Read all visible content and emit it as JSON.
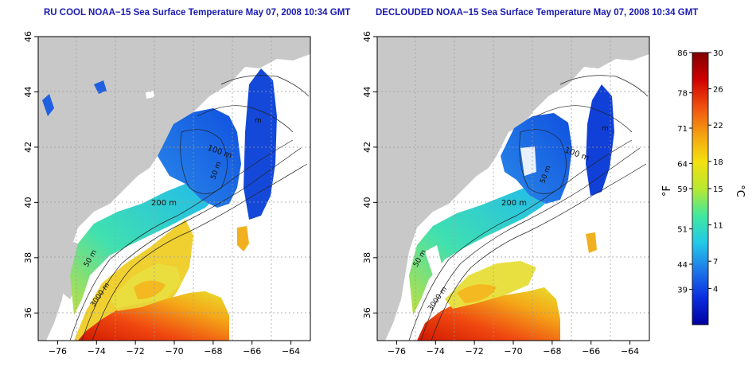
{
  "panels": [
    {
      "title": "RU COOL NOAA−15 Sea Surface Temperature May 07, 2008 10:34 GMT"
    },
    {
      "title": "DECLOUDED NOAA−15 Sea Surface Temperature May 07, 2008 10:34 GMT"
    }
  ],
  "map_axes": {
    "lon_ticks": [
      "−76",
      "−74",
      "−72",
      "−70",
      "−68",
      "−66",
      "−64"
    ],
    "lon_values": [
      -76,
      -74,
      -72,
      -70,
      -68,
      -66,
      -64
    ],
    "lat_ticks": [
      "36",
      "38",
      "40",
      "42",
      "44",
      "46"
    ],
    "lat_values": [
      36,
      38,
      40,
      42,
      44,
      46
    ],
    "lon_range": [
      -77,
      -63
    ],
    "lat_range": [
      35,
      46
    ]
  },
  "contour_labels": [
    "200 m",
    "100 m",
    "50 m",
    "50 m",
    "3000 m",
    "m"
  ],
  "colorbar": {
    "f_label": "°F",
    "c_label": "°C",
    "f_ticks": [
      "86",
      "78",
      "71",
      "64",
      "59",
      "51",
      "44",
      "39"
    ],
    "f_values": [
      86,
      78,
      71,
      64,
      59,
      51,
      44,
      39
    ],
    "c_ticks": [
      "30",
      "26",
      "22",
      "18",
      "15",
      "11",
      "7",
      "4"
    ],
    "c_values": [
      30,
      26,
      22,
      18,
      15,
      11,
      7,
      4
    ],
    "c_range": [
      0,
      30
    ],
    "colors": [
      "#0000a0",
      "#0a2ee0",
      "#1e78e8",
      "#22c8e8",
      "#40e8a0",
      "#b8e830",
      "#f4e010",
      "#f4a010",
      "#f05010",
      "#d00000",
      "#800000"
    ]
  },
  "colors": {
    "land": "#c8c8c8",
    "title": "#1a1ab0"
  }
}
